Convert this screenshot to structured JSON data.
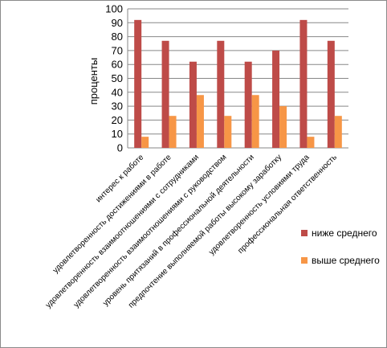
{
  "chart_data": {
    "type": "bar",
    "title": "",
    "xlabel": "",
    "ylabel": "проценты",
    "ylim": [
      0,
      100
    ],
    "yticks": [
      0,
      10,
      20,
      30,
      40,
      50,
      60,
      70,
      80,
      90,
      100
    ],
    "grid": true,
    "legend_position": "right",
    "categories": [
      "интерес к работе",
      "удовлетворенность достижениями в работе",
      "удовлетворенность взаимоотношениями с сотрудниками",
      "удовлетворенность взаимоотношениями с руководством",
      "уровень притязаний в профессиональной деятельности",
      "предпочтение выполняемой работы высокому заработку",
      "удовлетворенность условиями труда",
      "профессиональная ответственность"
    ],
    "series": [
      {
        "name": "ниже среднего",
        "color": "#BE4B48",
        "values": [
          92,
          77,
          62,
          77,
          62,
          70,
          92,
          77
        ]
      },
      {
        "name": "выше среднего",
        "color": "#F79646",
        "values": [
          8,
          23,
          38,
          23,
          38,
          30,
          8,
          23
        ]
      }
    ]
  }
}
